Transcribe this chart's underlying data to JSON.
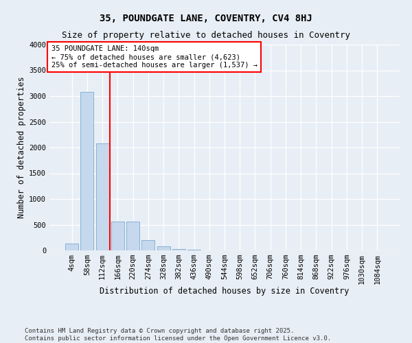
{
  "title1": "35, POUNDGATE LANE, COVENTRY, CV4 8HJ",
  "title2": "Size of property relative to detached houses in Coventry",
  "xlabel": "Distribution of detached houses by size in Coventry",
  "ylabel": "Number of detached properties",
  "footer1": "Contains HM Land Registry data © Crown copyright and database right 2025.",
  "footer2": "Contains public sector information licensed under the Open Government Licence v3.0.",
  "annotation_title": "35 POUNDGATE LANE: 140sqm",
  "annotation_line1": "← 75% of detached houses are smaller (4,623)",
  "annotation_line2": "25% of semi-detached houses are larger (1,537) →",
  "bar_color": "#c5d8ed",
  "bar_edge_color": "#7aabcf",
  "vline_color": "red",
  "vline_x_index": 2.5,
  "categories": [
    "4sqm",
    "58sqm",
    "112sqm",
    "166sqm",
    "220sqm",
    "274sqm",
    "328sqm",
    "382sqm",
    "436sqm",
    "490sqm",
    "544sqm",
    "598sqm",
    "652sqm",
    "706sqm",
    "760sqm",
    "814sqm",
    "868sqm",
    "922sqm",
    "976sqm",
    "1030sqm",
    "1084sqm"
  ],
  "values": [
    130,
    3080,
    2080,
    555,
    555,
    195,
    75,
    28,
    12,
    4,
    0,
    0,
    0,
    0,
    0,
    0,
    0,
    0,
    0,
    0,
    0
  ],
  "ylim": [
    0,
    4000
  ],
  "yticks": [
    0,
    500,
    1000,
    1500,
    2000,
    2500,
    3000,
    3500,
    4000
  ],
  "background_color": "#e8eef5",
  "plot_bg_color": "#e8eef5",
  "grid_color": "white",
  "title_fontsize": 10,
  "subtitle_fontsize": 9,
  "axis_label_fontsize": 8.5,
  "tick_fontsize": 7.5,
  "annotation_fontsize": 7.5,
  "footer_fontsize": 6.5
}
